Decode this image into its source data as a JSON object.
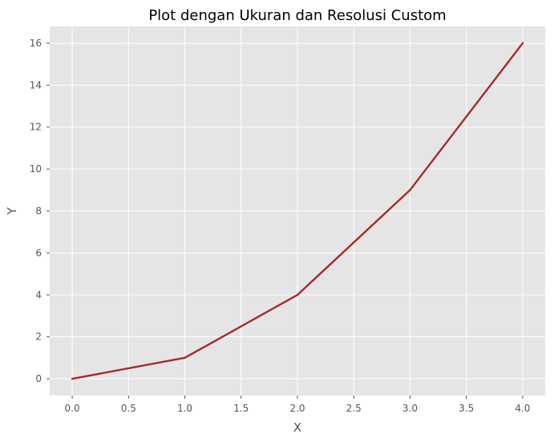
{
  "chart_data": {
    "type": "line",
    "title": "Plot dengan Ukuran dan Resolusi Custom",
    "xlabel": "X",
    "ylabel": "Y",
    "x": [
      0,
      1,
      2,
      3,
      4
    ],
    "series": [
      {
        "values": [
          0,
          1,
          4,
          9,
          16
        ],
        "color": "#a52a2a"
      }
    ],
    "xlim": [
      -0.2,
      4.2
    ],
    "ylim": [
      -0.8,
      16.8
    ],
    "xticks": [
      "0.0",
      "0.5",
      "1.0",
      "1.5",
      "2.0",
      "2.5",
      "3.0",
      "3.5",
      "4.0"
    ],
    "yticks": [
      "0",
      "2",
      "4",
      "6",
      "8",
      "10",
      "12",
      "14",
      "16"
    ],
    "grid": true,
    "legend": "none",
    "style": "ggplot",
    "background_color": "#e5e5e5",
    "grid_color": "#ffffff"
  }
}
